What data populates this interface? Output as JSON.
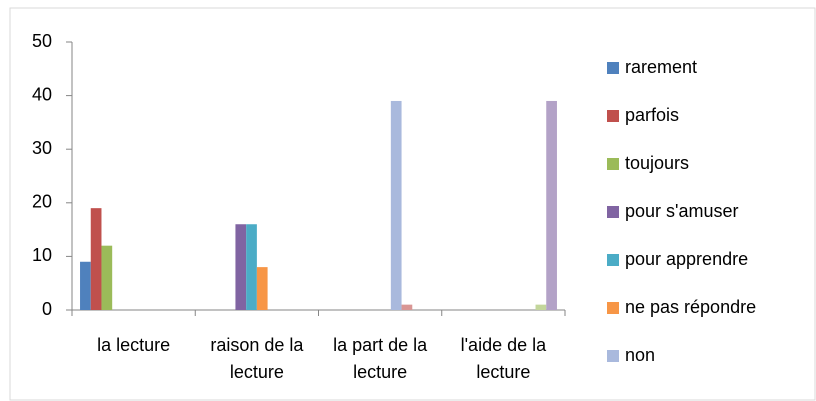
{
  "chart_data": {
    "type": "bar",
    "categories": [
      "la lecture",
      "raison de la lecture",
      "la part de la lecture",
      "l'aide de la lecture"
    ],
    "series": [
      {
        "name": "rarement",
        "color": "#4f81bd",
        "values": [
          9,
          0,
          0,
          0
        ]
      },
      {
        "name": "parfois",
        "color": "#c0504d",
        "values": [
          19,
          0,
          0,
          0
        ]
      },
      {
        "name": "toujours",
        "color": "#9bbb59",
        "values": [
          12,
          0,
          0,
          0
        ]
      },
      {
        "name": "pour s'amuser",
        "color": "#8064a2",
        "values": [
          0,
          16,
          0,
          0
        ]
      },
      {
        "name": "pour apprendre",
        "color": "#4bacc6",
        "values": [
          0,
          16,
          0,
          0
        ]
      },
      {
        "name": "ne pas répondre",
        "color": "#f79646",
        "values": [
          0,
          8,
          0,
          0
        ]
      },
      {
        "name": "non",
        "color": "#a9b9dd",
        "values": [
          0,
          0,
          39,
          0
        ]
      },
      {
        "color": "#d99694",
        "values": [
          0,
          0,
          1,
          0
        ]
      },
      {
        "color": "#c3d69b",
        "values": [
          0,
          0,
          0,
          1
        ]
      },
      {
        "color": "#b3a2c7",
        "values": [
          0,
          0,
          0,
          39
        ]
      }
    ],
    "ylim": [
      0,
      50
    ],
    "yticks": [
      0,
      10,
      20,
      30,
      40,
      50
    ],
    "grid": false,
    "legend": "right"
  }
}
